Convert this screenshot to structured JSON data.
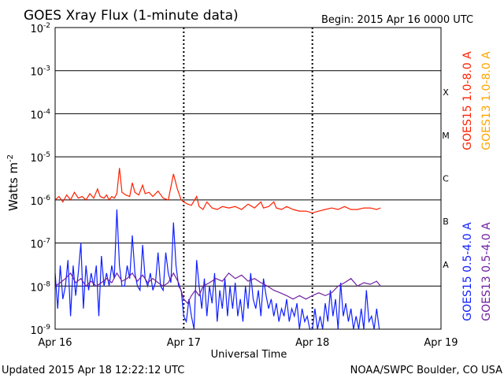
{
  "chart_data": {
    "type": "line",
    "title": "GOES Xray Flux (1-minute data)",
    "begin_label": "Begin:  2015 Apr 16 0000 UTC",
    "xlabel": "Universal Time",
    "ylabel": "Watts m",
    "ylabel_sup": "-2",
    "y_scale": "log",
    "ylim": [
      1e-09,
      0.01
    ],
    "xlim_days": [
      0,
      3
    ],
    "x_ticks": [
      "Apr 16",
      "Apr 17",
      "Apr 18",
      "Apr 19"
    ],
    "y_ticks": [
      {
        "base": "10",
        "exp": "-9"
      },
      {
        "base": "10",
        "exp": "-8"
      },
      {
        "base": "10",
        "exp": "-7"
      },
      {
        "base": "10",
        "exp": "-6"
      },
      {
        "base": "10",
        "exp": "-5"
      },
      {
        "base": "10",
        "exp": "-4"
      },
      {
        "base": "10",
        "exp": "-3"
      },
      {
        "base": "10",
        "exp": "-2"
      }
    ],
    "flare_classes": [
      "A",
      "B",
      "C",
      "M",
      "X"
    ],
    "grid": true,
    "legend_position": "right",
    "series": [
      {
        "name": "GOES15 1.0-8.0 A",
        "color": "#ff2000",
        "points": [
          [
            0.0,
            1e-06
          ],
          [
            0.03,
            1.2e-06
          ],
          [
            0.06,
            9e-07
          ],
          [
            0.09,
            1.3e-06
          ],
          [
            0.12,
            1e-06
          ],
          [
            0.15,
            1.5e-06
          ],
          [
            0.18,
            1.1e-06
          ],
          [
            0.21,
            1.2e-06
          ],
          [
            0.24,
            1e-06
          ],
          [
            0.27,
            1.4e-06
          ],
          [
            0.3,
            1.1e-06
          ],
          [
            0.33,
            1.8e-06
          ],
          [
            0.35,
            1.2e-06
          ],
          [
            0.38,
            1.1e-06
          ],
          [
            0.4,
            1.3e-06
          ],
          [
            0.42,
            1e-06
          ],
          [
            0.44,
            1.2e-06
          ],
          [
            0.46,
            1.1e-06
          ],
          [
            0.48,
            1.4e-06
          ],
          [
            0.5,
            5.5e-06
          ],
          [
            0.52,
            1.5e-06
          ],
          [
            0.55,
            1.3e-06
          ],
          [
            0.58,
            1.2e-06
          ],
          [
            0.6,
            2.5e-06
          ],
          [
            0.62,
            1.5e-06
          ],
          [
            0.65,
            1.3e-06
          ],
          [
            0.68,
            2.2e-06
          ],
          [
            0.7,
            1.4e-06
          ],
          [
            0.73,
            1.5e-06
          ],
          [
            0.76,
            1.2e-06
          ],
          [
            0.8,
            1.6e-06
          ],
          [
            0.84,
            1.1e-06
          ],
          [
            0.88,
            1e-06
          ],
          [
            0.92,
            4e-06
          ],
          [
            0.95,
            1.8e-06
          ],
          [
            0.98,
            1e-06
          ],
          [
            1.0,
            9e-07
          ],
          [
            1.03,
            8e-07
          ],
          [
            1.06,
            7.5e-07
          ],
          [
            1.1,
            1.2e-06
          ],
          [
            1.12,
            7e-07
          ],
          [
            1.15,
            6e-07
          ],
          [
            1.18,
            9e-07
          ],
          [
            1.22,
            6.5e-07
          ],
          [
            1.26,
            6e-07
          ],
          [
            1.3,
            7e-07
          ],
          [
            1.35,
            6.5e-07
          ],
          [
            1.4,
            7e-07
          ],
          [
            1.45,
            6e-07
          ],
          [
            1.5,
            8e-07
          ],
          [
            1.55,
            6.5e-07
          ],
          [
            1.6,
            9e-07
          ],
          [
            1.62,
            6.5e-07
          ],
          [
            1.66,
            7e-07
          ],
          [
            1.7,
            9e-07
          ],
          [
            1.72,
            6.5e-07
          ],
          [
            1.76,
            6e-07
          ],
          [
            1.8,
            7e-07
          ],
          [
            1.85,
            6e-07
          ],
          [
            1.9,
            5.5e-07
          ],
          [
            1.95,
            5.5e-07
          ],
          [
            2.0,
            5e-07
          ],
          [
            2.05,
            5.5e-07
          ],
          [
            2.1,
            6e-07
          ],
          [
            2.15,
            6.5e-07
          ],
          [
            2.2,
            6e-07
          ],
          [
            2.25,
            7e-07
          ],
          [
            2.3,
            6e-07
          ],
          [
            2.35,
            6e-07
          ],
          [
            2.4,
            6.5e-07
          ],
          [
            2.45,
            6.5e-07
          ],
          [
            2.5,
            6e-07
          ],
          [
            2.53,
            6.5e-07
          ]
        ]
      },
      {
        "name": "GOES13 1.0-8.0 A",
        "color": "#ffa500",
        "points": []
      },
      {
        "name": "GOES15 0.5-4.0 A",
        "color": "#1020ff",
        "points": [
          [
            0.0,
            2e-08
          ],
          [
            0.02,
            3e-09
          ],
          [
            0.04,
            3e-08
          ],
          [
            0.06,
            5e-09
          ],
          [
            0.08,
            1e-08
          ],
          [
            0.1,
            4e-08
          ],
          [
            0.12,
            2e-09
          ],
          [
            0.14,
            3e-08
          ],
          [
            0.16,
            6e-09
          ],
          [
            0.18,
            2e-08
          ],
          [
            0.2,
            1e-07
          ],
          [
            0.22,
            3e-09
          ],
          [
            0.24,
            3e-08
          ],
          [
            0.26,
            8e-09
          ],
          [
            0.28,
            2e-08
          ],
          [
            0.3,
            1e-08
          ],
          [
            0.32,
            3e-08
          ],
          [
            0.34,
            2e-09
          ],
          [
            0.36,
            5e-08
          ],
          [
            0.38,
            1e-08
          ],
          [
            0.4,
            2e-08
          ],
          [
            0.42,
            1e-08
          ],
          [
            0.44,
            3e-08
          ],
          [
            0.46,
            1.5e-08
          ],
          [
            0.48,
            6e-07
          ],
          [
            0.5,
            3e-08
          ],
          [
            0.52,
            1e-08
          ],
          [
            0.54,
            1e-08
          ],
          [
            0.56,
            3e-08
          ],
          [
            0.58,
            1.5e-08
          ],
          [
            0.6,
            1.5e-07
          ],
          [
            0.62,
            2e-08
          ],
          [
            0.64,
            1e-08
          ],
          [
            0.66,
            8e-09
          ],
          [
            0.68,
            9e-08
          ],
          [
            0.7,
            1.5e-08
          ],
          [
            0.72,
            1e-08
          ],
          [
            0.74,
            2e-08
          ],
          [
            0.76,
            8e-09
          ],
          [
            0.78,
            1.2e-08
          ],
          [
            0.8,
            6e-08
          ],
          [
            0.82,
            1e-08
          ],
          [
            0.84,
            8e-09
          ],
          [
            0.86,
            6e-08
          ],
          [
            0.88,
            2e-08
          ],
          [
            0.9,
            1.2e-08
          ],
          [
            0.92,
            3e-07
          ],
          [
            0.94,
            3e-08
          ],
          [
            0.96,
            1e-08
          ],
          [
            0.98,
            8e-09
          ],
          [
            1.0,
            2e-09
          ],
          [
            1.02,
            1.5e-09
          ],
          [
            1.04,
            5e-09
          ],
          [
            1.06,
            2e-09
          ],
          [
            1.08,
            1e-09
          ],
          [
            1.1,
            4e-08
          ],
          [
            1.12,
            1e-08
          ],
          [
            1.14,
            3e-09
          ],
          [
            1.16,
            1.5e-08
          ],
          [
            1.18,
            2e-09
          ],
          [
            1.2,
            1e-08
          ],
          [
            1.22,
            4e-09
          ],
          [
            1.24,
            2e-08
          ],
          [
            1.26,
            1.5e-09
          ],
          [
            1.28,
            8e-09
          ],
          [
            1.3,
            3e-09
          ],
          [
            1.32,
            1.5e-08
          ],
          [
            1.34,
            2e-09
          ],
          [
            1.36,
            1e-08
          ],
          [
            1.38,
            3e-09
          ],
          [
            1.4,
            1.2e-08
          ],
          [
            1.42,
            2e-09
          ],
          [
            1.44,
            5e-09
          ],
          [
            1.46,
            1.5e-09
          ],
          [
            1.48,
            1e-08
          ],
          [
            1.5,
            3e-09
          ],
          [
            1.52,
            2e-08
          ],
          [
            1.54,
            5e-09
          ],
          [
            1.56,
            3e-09
          ],
          [
            1.58,
            8e-09
          ],
          [
            1.6,
            2e-09
          ],
          [
            1.62,
            1.5e-08
          ],
          [
            1.64,
            6e-09
          ],
          [
            1.66,
            3e-09
          ],
          [
            1.68,
            5e-09
          ],
          [
            1.7,
            2e-09
          ],
          [
            1.72,
            4e-09
          ],
          [
            1.74,
            1.5e-09
          ],
          [
            1.76,
            3e-09
          ],
          [
            1.78,
            2e-09
          ],
          [
            1.8,
            5e-09
          ],
          [
            1.82,
            1.5e-09
          ],
          [
            1.84,
            3e-09
          ],
          [
            1.86,
            2e-09
          ],
          [
            1.88,
            4e-09
          ],
          [
            1.9,
            1e-09
          ],
          [
            1.92,
            3e-09
          ],
          [
            1.94,
            1.5e-09
          ],
          [
            1.96,
            2e-09
          ],
          [
            1.98,
            1e-09
          ],
          [
            2.0,
            1e-09
          ],
          [
            2.02,
            3e-09
          ],
          [
            2.04,
            1e-09
          ],
          [
            2.06,
            2e-09
          ],
          [
            2.08,
            1e-09
          ],
          [
            2.1,
            4e-09
          ],
          [
            2.12,
            1.5e-09
          ],
          [
            2.14,
            8e-09
          ],
          [
            2.16,
            2e-09
          ],
          [
            2.18,
            5e-09
          ],
          [
            2.2,
            1e-09
          ],
          [
            2.22,
            1.2e-08
          ],
          [
            2.24,
            2e-09
          ],
          [
            2.26,
            4e-09
          ],
          [
            2.28,
            1.5e-09
          ],
          [
            2.3,
            3e-09
          ],
          [
            2.32,
            1e-09
          ],
          [
            2.34,
            2e-09
          ],
          [
            2.36,
            1e-09
          ],
          [
            2.38,
            3e-09
          ],
          [
            2.4,
            1e-09
          ],
          [
            2.42,
            8e-09
          ],
          [
            2.44,
            1.5e-09
          ],
          [
            2.46,
            2e-09
          ],
          [
            2.48,
            1e-09
          ],
          [
            2.5,
            3e-09
          ],
          [
            2.52,
            1e-09
          ]
        ]
      },
      {
        "name": "GOES13 0.5-4.0 A",
        "color": "#7020a0",
        "points": [
          [
            0.0,
            1e-08
          ],
          [
            0.04,
            1.2e-08
          ],
          [
            0.08,
            1.5e-08
          ],
          [
            0.12,
            2e-08
          ],
          [
            0.16,
            1.2e-08
          ],
          [
            0.2,
            1.5e-08
          ],
          [
            0.24,
            1e-08
          ],
          [
            0.28,
            1.3e-08
          ],
          [
            0.32,
            1e-08
          ],
          [
            0.36,
            1.2e-08
          ],
          [
            0.4,
            1.5e-08
          ],
          [
            0.44,
            1.2e-08
          ],
          [
            0.48,
            2e-08
          ],
          [
            0.52,
            1.3e-08
          ],
          [
            0.56,
            1.5e-08
          ],
          [
            0.6,
            2e-08
          ],
          [
            0.64,
            1.3e-08
          ],
          [
            0.68,
            1.8e-08
          ],
          [
            0.72,
            1.2e-08
          ],
          [
            0.76,
            1.5e-08
          ],
          [
            0.8,
            1.2e-08
          ],
          [
            0.84,
            1e-08
          ],
          [
            0.88,
            1.2e-08
          ],
          [
            0.92,
            2e-08
          ],
          [
            0.96,
            1.2e-08
          ],
          [
            1.0,
            5e-09
          ],
          [
            1.03,
            4e-09
          ],
          [
            1.06,
            6e-09
          ],
          [
            1.09,
            8e-09
          ],
          [
            1.12,
            6e-09
          ],
          [
            1.15,
            1e-08
          ],
          [
            1.2,
            1.2e-08
          ],
          [
            1.25,
            1.5e-08
          ],
          [
            1.3,
            1.3e-08
          ],
          [
            1.35,
            2e-08
          ],
          [
            1.4,
            1.5e-08
          ],
          [
            1.45,
            1.8e-08
          ],
          [
            1.5,
            1.3e-08
          ],
          [
            1.55,
            1.5e-08
          ],
          [
            1.6,
            1.2e-08
          ],
          [
            1.65,
            1e-08
          ],
          [
            1.7,
            8e-09
          ],
          [
            1.75,
            7e-09
          ],
          [
            1.8,
            6e-09
          ],
          [
            1.85,
            5e-09
          ],
          [
            1.9,
            6e-09
          ],
          [
            1.95,
            5e-09
          ],
          [
            2.0,
            6e-09
          ],
          [
            2.05,
            7e-09
          ],
          [
            2.1,
            6e-09
          ],
          [
            2.15,
            7e-09
          ],
          [
            2.2,
            1e-08
          ],
          [
            2.25,
            1.2e-08
          ],
          [
            2.3,
            1.5e-08
          ],
          [
            2.35,
            1e-08
          ],
          [
            2.4,
            1.2e-08
          ],
          [
            2.45,
            1.1e-08
          ],
          [
            2.5,
            1.3e-08
          ],
          [
            2.53,
            1e-08
          ]
        ]
      }
    ]
  },
  "footer": {
    "updated": "Updated 2015 Apr 18 12:22:12 UTC",
    "credit": "NOAA/SWPC Boulder, CO USA"
  }
}
